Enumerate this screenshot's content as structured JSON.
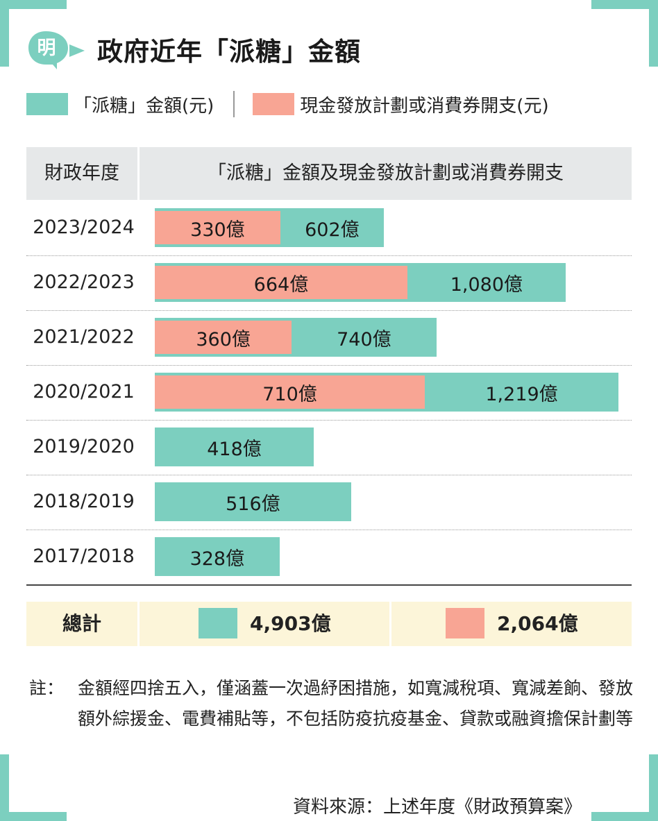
{
  "logo": {
    "glyph": "明",
    "color": "#7ccfbf"
  },
  "title": "政府近年「派糖」金額",
  "legend": {
    "total_label": "「派糖」金額(元)",
    "cash_label": "現金發放計劃或消費券開支(元)"
  },
  "colors": {
    "total": "#7ccfbf",
    "cash": "#f8a594",
    "header_bg": "#e6e8e9",
    "total_row_bg": "#fcf5d9"
  },
  "table_header": {
    "year_col": "財政年度",
    "bars_col": "「派糖」金額及現金發放計劃或消費券開支"
  },
  "chart_data": {
    "type": "bar",
    "orientation": "horizontal",
    "stacked_overlay": true,
    "categories": [
      "2023/2024",
      "2022/2023",
      "2021/2022",
      "2020/2021",
      "2019/2020",
      "2018/2019",
      "2017/2018"
    ],
    "series": [
      {
        "name": "「派糖」金額(元)",
        "values": [
          602,
          1080,
          740,
          1219,
          418,
          516,
          328
        ],
        "labels": [
          "602億",
          "1,080億",
          "740億",
          "1,219億",
          "418億",
          "516億",
          "328億"
        ]
      },
      {
        "name": "現金發放計劃或消費券開支(元)",
        "values": [
          330,
          664,
          360,
          710,
          null,
          null,
          null
        ],
        "labels": [
          "330億",
          "664億",
          "360億",
          "710億",
          "",
          "",
          ""
        ]
      }
    ],
    "unit": "億",
    "grid": false
  },
  "totals": {
    "label": "總計",
    "total_value": "4,903億",
    "cash_value": "2,064億"
  },
  "note": {
    "label": "註：",
    "text": "金額經四捨五入，僅涵蓋一次過紓困措施，如寬減稅項、寬減差餉、發放額外綜援金、電費補貼等，不包括防疫抗疫基金、貸款或融資擔保計劃等"
  },
  "source": "資料來源：上述年度《財政預算案》"
}
